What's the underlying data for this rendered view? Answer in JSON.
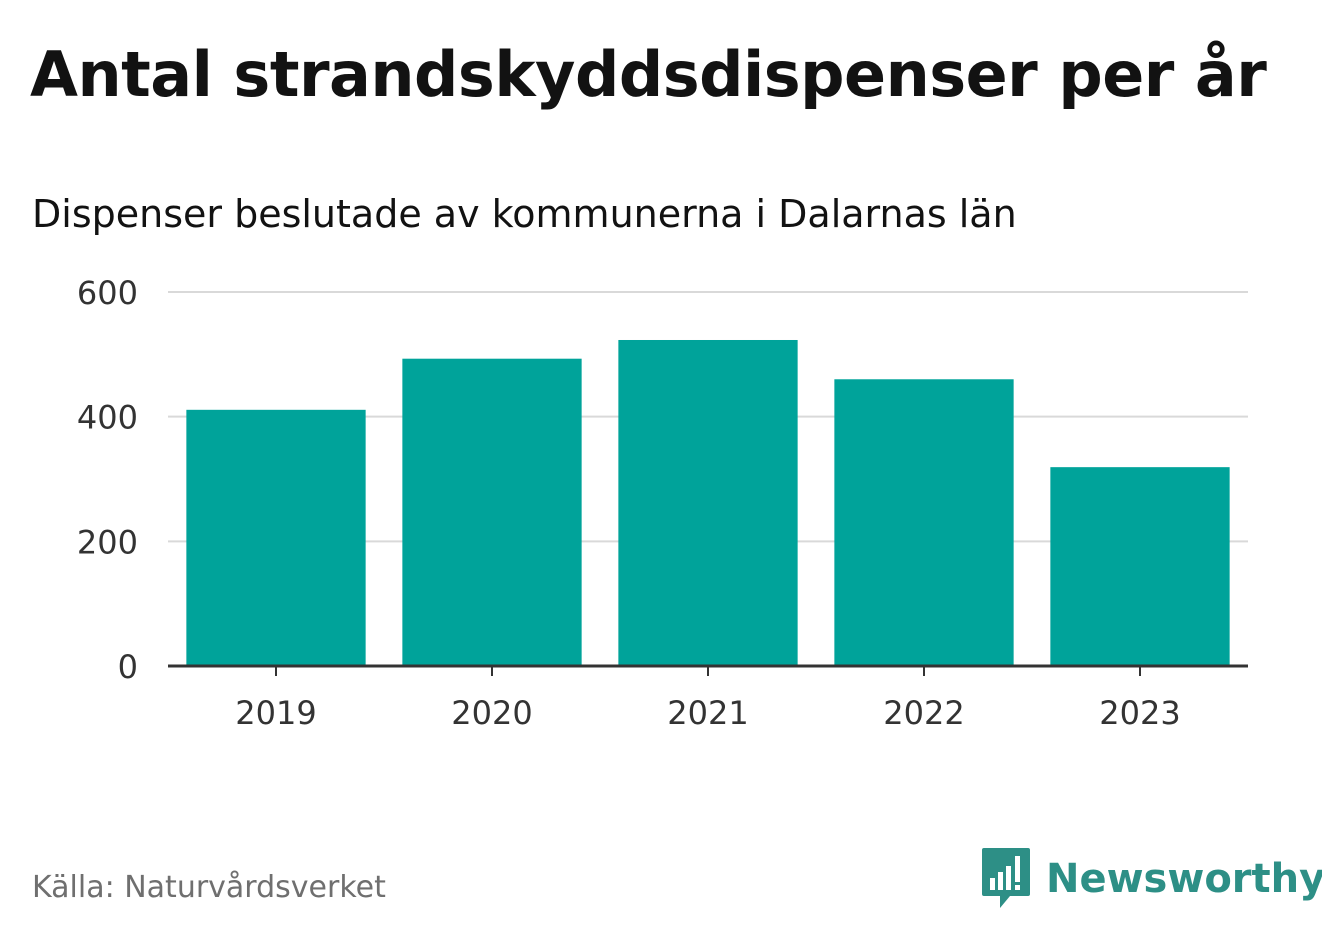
{
  "header": {
    "title": "Antal strandskyddsdispenser per år",
    "subtitle": "Dispenser beslutade av kommunerna i Dalarnas län"
  },
  "footer": {
    "source": "Källa: Naturvårdsverket",
    "brand": "Newsworthy",
    "brand_icon": "bar-chart-speech-bubble-icon"
  },
  "colors": {
    "bar": "#00a39a",
    "grid": "#d9d9d9",
    "axis": "#333333",
    "brand": "#2d8f86"
  },
  "chart_data": {
    "type": "bar",
    "title": "Antal strandskyddsdispenser per år",
    "subtitle": "Dispenser beslutade av kommunerna i Dalarnas län",
    "categories": [
      "2019",
      "2020",
      "2021",
      "2022",
      "2023"
    ],
    "values": [
      411,
      493,
      523,
      460,
      319
    ],
    "xlabel": "",
    "ylabel": "",
    "ylim": [
      0,
      600
    ],
    "yticks": [
      0,
      200,
      400,
      600
    ],
    "grid": true,
    "legend": "none"
  }
}
